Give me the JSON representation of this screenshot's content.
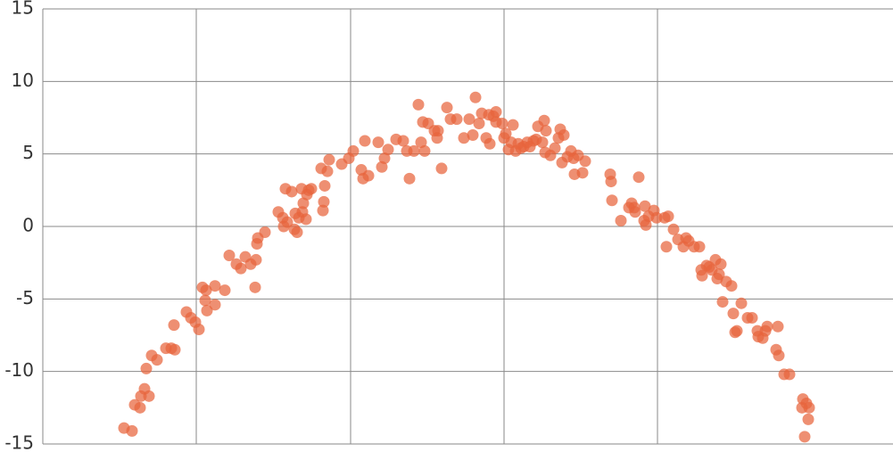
{
  "chart_data": {
    "type": "scatter",
    "color": "#e8643c",
    "grid": true,
    "xlim": [
      0,
      953
    ],
    "xticks": [
      172,
      345,
      517,
      689
    ],
    "ylim": [
      -15,
      15
    ],
    "yticks": [
      15,
      10,
      5,
      0,
      -5,
      -10,
      -15
    ],
    "x": [
      91,
      100,
      103,
      109,
      110,
      114,
      116,
      119,
      122,
      128,
      138,
      144,
      148,
      147,
      161,
      166,
      171,
      175,
      179,
      182,
      184,
      183,
      193,
      193,
      204,
      209,
      217,
      222,
      227,
      233,
      239,
      238,
      240,
      241,
      249,
      264,
      269,
      270,
      272,
      274,
      279,
      282,
      283,
      285,
      287,
      290,
      291,
      292,
      295,
      296,
      298,
      301,
      312,
      314,
      315,
      316,
      319,
      321,
      335,
      343,
      348,
      357,
      359,
      361,
      365,
      376,
      380,
      383,
      387,
      396,
      404,
      408,
      411,
      416,
      421,
      424,
      426,
      428,
      432,
      439,
      442,
      443,
      447,
      453,
      457,
      464,
      472,
      478,
      482,
      485,
      489,
      492,
      497,
      501,
      500,
      505,
      508,
      508,
      515,
      517,
      519,
      522,
      525,
      527,
      530,
      533,
      536,
      539,
      543,
      546,
      550,
      553,
      555,
      560,
      562,
      563,
      564,
      569,
      574,
      578,
      580,
      582,
      584,
      588,
      592,
      595,
      596,
      600,
      605,
      608,
      636,
      637,
      638,
      648,
      657,
      660,
      663,
      664,
      668,
      674,
      675,
      676,
      679,
      685,
      688,
      697,
      701,
      699,
      707,
      712,
      718,
      721,
      724,
      730,
      736,
      738,
      739,
      744,
      747,
      750,
      754,
      756,
      758,
      760,
      762,
      766,
      772,
      774,
      776,
      778,
      783,
      790,
      795,
      801,
      802,
      807,
      810,
      812,
      824,
      822,
      825,
      831,
      837,
      851,
      852,
      856,
      858,
      859,
      854
    ],
    "y": [
      -13.9,
      -14.1,
      -12.3,
      -12.5,
      -11.7,
      -11.2,
      -9.8,
      -11.7,
      -8.9,
      -9.2,
      -8.4,
      -8.4,
      -8.5,
      -6.8,
      -5.9,
      -6.3,
      -6.6,
      -7.1,
      -4.2,
      -5.1,
      -5.8,
      -4.4,
      -4.1,
      -5.4,
      -4.4,
      -2.0,
      -2.6,
      -2.9,
      -2.1,
      -2.6,
      -2.3,
      -4.2,
      -1.2,
      -0.8,
      -0.4,
      1.0,
      0.6,
      0.0,
      2.6,
      0.3,
      2.4,
      -0.2,
      0.9,
      -0.4,
      0.6,
      2.6,
      1.0,
      1.6,
      0.5,
      2.2,
      2.5,
      2.6,
      4.0,
      1.1,
      1.7,
      2.8,
      3.8,
      4.6,
      4.3,
      4.7,
      5.2,
      3.9,
      3.3,
      5.9,
      3.5,
      5.8,
      4.1,
      4.7,
      5.3,
      6.0,
      5.9,
      5.2,
      3.3,
      5.2,
      8.4,
      5.8,
      7.2,
      5.2,
      7.1,
      6.6,
      6.1,
      6.6,
      4.0,
      8.2,
      7.4,
      7.4,
      6.1,
      7.4,
      6.3,
      8.9,
      7.1,
      7.8,
      6.1,
      5.7,
      7.7,
      7.6,
      7.9,
      7.2,
      7.1,
      6.1,
      6.4,
      5.3,
      5.8,
      7.0,
      5.2,
      5.7,
      5.4,
      5.5,
      5.8,
      5.5,
      5.9,
      6.0,
      6.9,
      5.8,
      7.3,
      5.1,
      6.6,
      4.9,
      5.4,
      6.1,
      6.7,
      4.4,
      6.3,
      4.8,
      5.2,
      4.7,
      3.6,
      4.9,
      3.7,
      4.5,
      3.6,
      3.1,
      1.8,
      0.4,
      1.3,
      1.6,
      1.3,
      1.0,
      3.4,
      0.4,
      1.4,
      0.1,
      0.7,
      1.1,
      0.6,
      0.6,
      0.7,
      -1.4,
      -0.2,
      -0.9,
      -1.4,
      -0.8,
      -1.0,
      -1.4,
      -1.4,
      -3.0,
      -3.4,
      -2.7,
      -2.8,
      -3.0,
      -2.3,
      -3.6,
      -3.3,
      -2.6,
      -5.2,
      -3.8,
      -4.1,
      -6.0,
      -7.3,
      -7.2,
      -5.3,
      -6.3,
      -6.3,
      -7.2,
      -7.6,
      -7.7,
      -7.2,
      -6.9,
      -6.9,
      -8.5,
      -8.9,
      -10.2,
      -10.2,
      -12.5,
      -11.9,
      -12.2,
      -13.3,
      -12.5,
      -14.5
    ]
  }
}
